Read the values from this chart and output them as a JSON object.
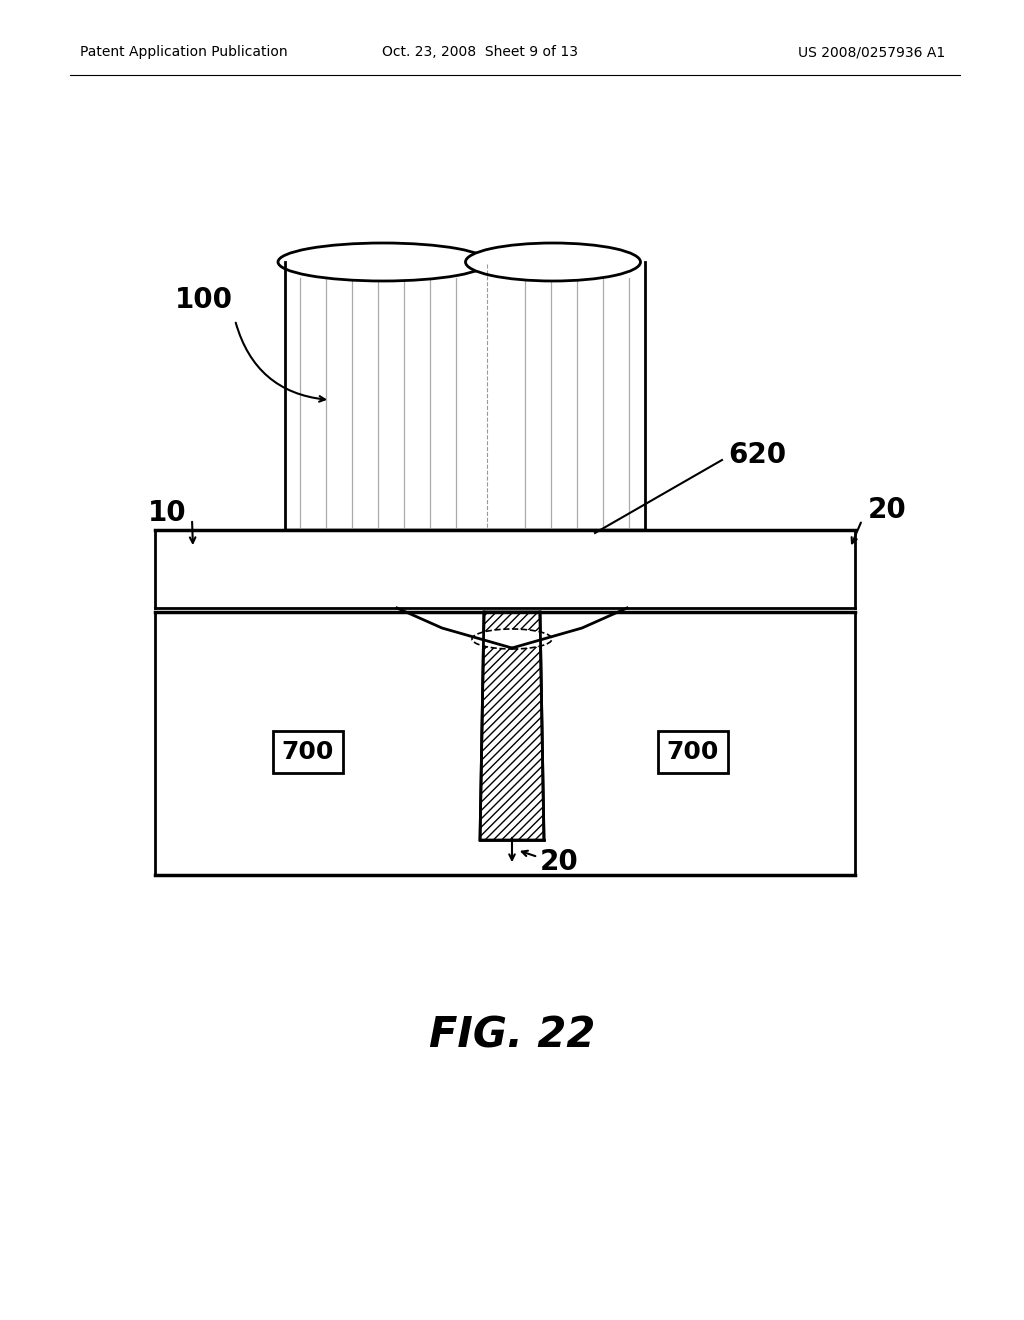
{
  "header_left": "Patent Application Publication",
  "header_mid": "Oct. 23, 2008  Sheet 9 of 13",
  "header_right": "US 2008/0257936 A1",
  "figure_label": "FIG. 22",
  "bg_color": "#ffffff",
  "line_color": "#000000",
  "label_100": "100",
  "label_10": "10",
  "label_20_right": "20",
  "label_20_bottom": "20",
  "label_620": "620",
  "label_700_left": "700",
  "label_700_right": "700"
}
